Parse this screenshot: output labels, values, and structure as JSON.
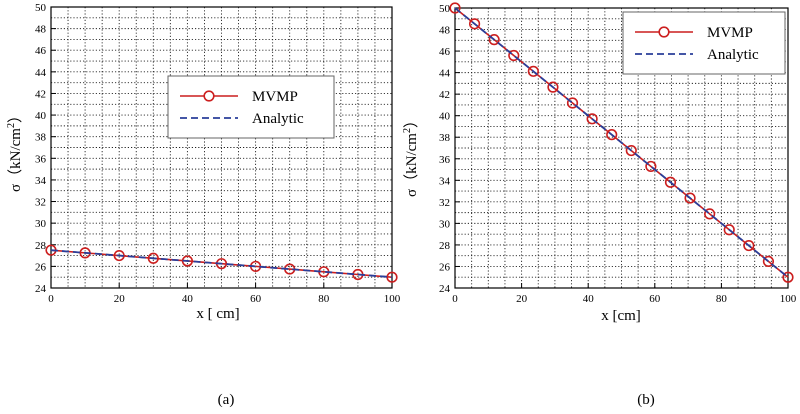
{
  "chart_data": [
    {
      "type": "line",
      "caption": "(a)",
      "xlabel": "x [ cm]",
      "ylabel": "σ（kN/cm",
      "ylabel_sup": "2",
      "ylabel_close": "）",
      "xlim": [
        0,
        100
      ],
      "ylim": [
        24,
        50
      ],
      "xticks": [
        0,
        20,
        40,
        60,
        80,
        100
      ],
      "yticks": [
        24,
        26,
        28,
        30,
        32,
        34,
        36,
        38,
        40,
        42,
        44,
        46,
        48,
        50
      ],
      "grid": true,
      "legend_position": "upper-middle-right",
      "series": [
        {
          "name": "MVMP",
          "style": "solid-with-circles",
          "color": "#cc1f1f",
          "x": [
            0,
            10,
            20,
            30,
            40,
            50,
            60,
            70,
            80,
            90,
            100
          ],
          "y": [
            27.5,
            27.25,
            27.0,
            26.75,
            26.5,
            26.25,
            26.0,
            25.75,
            25.5,
            25.25,
            25.0
          ]
        },
        {
          "name": "Analytic",
          "style": "dashed",
          "color": "#2a3f9a",
          "x": [
            0,
            100
          ],
          "y": [
            27.5,
            25.0
          ]
        }
      ]
    },
    {
      "type": "line",
      "caption": "(b)",
      "xlabel": "x [cm]",
      "ylabel": "σ（kN/cm",
      "ylabel_sup": "2",
      "ylabel_close": "）",
      "xlim": [
        0,
        100
      ],
      "ylim": [
        24,
        50
      ],
      "xticks": [
        0,
        20,
        40,
        60,
        80,
        100
      ],
      "yticks": [
        24,
        26,
        28,
        30,
        32,
        34,
        36,
        38,
        40,
        42,
        44,
        46,
        48,
        50
      ],
      "grid": true,
      "legend_position": "top-right",
      "series": [
        {
          "name": "MVMP",
          "style": "solid-with-circles",
          "color": "#cc1f1f",
          "x": [
            0,
            5.88,
            11.76,
            17.65,
            23.53,
            29.41,
            35.29,
            41.18,
            47.06,
            52.94,
            58.82,
            64.71,
            70.59,
            76.47,
            82.35,
            88.24,
            94.12,
            100
          ],
          "y": [
            50.0,
            48.53,
            47.06,
            45.59,
            44.12,
            42.65,
            41.18,
            39.71,
            38.24,
            36.76,
            35.29,
            33.82,
            32.35,
            30.88,
            29.41,
            27.94,
            26.47,
            25.0
          ]
        },
        {
          "name": "Analytic",
          "style": "dashed",
          "color": "#2a3f9a",
          "x": [
            0,
            100
          ],
          "y": [
            50.0,
            25.0
          ]
        }
      ]
    }
  ]
}
